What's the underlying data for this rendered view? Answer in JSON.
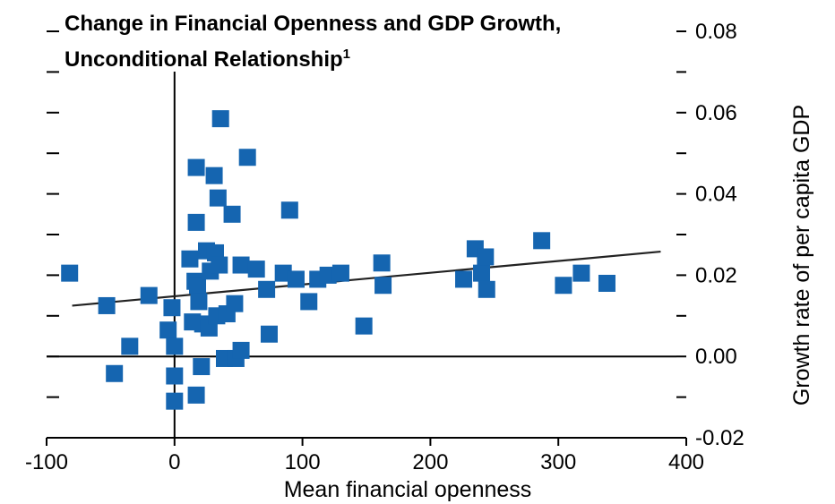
{
  "chart_data": {
    "type": "scatter",
    "title": "Change in Financial Openness and GDP Growth,",
    "title_line2": "Unconditional Relationship",
    "title_footnote": "1",
    "xlabel": "Mean financial openness",
    "ylabel": "Growth rate of per capita GDP",
    "xlim": [
      -100,
      400
    ],
    "ylim": [
      -0.02,
      0.08
    ],
    "x_ticks": [
      -100,
      0,
      100,
      200,
      300,
      400
    ],
    "x_tick_labels": [
      "-100",
      "0",
      "100",
      "200",
      "300",
      "400"
    ],
    "y_ticks": [
      -0.02,
      0.0,
      0.02,
      0.04,
      0.06,
      0.08
    ],
    "y_tick_labels": [
      "-0.02",
      "0.00",
      "0.02",
      "0.04",
      "0.06",
      "0.08"
    ],
    "y_axis_side": "right",
    "grid": false,
    "marker": "square",
    "marker_color": "#1565b0",
    "trend_line": {
      "x": [
        -80,
        380
      ],
      "y": [
        0.0125,
        0.0258
      ],
      "color": "#222222"
    },
    "points": [
      {
        "x": -82,
        "y": 0.0205
      },
      {
        "x": -53,
        "y": 0.0125
      },
      {
        "x": -47,
        "y": -0.0042
      },
      {
        "x": -35,
        "y": 0.0025
      },
      {
        "x": -20,
        "y": 0.015
      },
      {
        "x": -5,
        "y": 0.0065
      },
      {
        "x": -2,
        "y": 0.012
      },
      {
        "x": 0,
        "y": 0.0025
      },
      {
        "x": 0,
        "y": -0.0048
      },
      {
        "x": 0,
        "y": -0.011
      },
      {
        "x": 12,
        "y": 0.024
      },
      {
        "x": 14,
        "y": 0.0085
      },
      {
        "x": 16,
        "y": 0.0185
      },
      {
        "x": 17,
        "y": -0.0095
      },
      {
        "x": 17,
        "y": 0.033
      },
      {
        "x": 17,
        "y": 0.0465
      },
      {
        "x": 18,
        "y": 0.0175
      },
      {
        "x": 19,
        "y": 0.0135
      },
      {
        "x": 22,
        "y": 0.008
      },
      {
        "x": 21,
        "y": -0.0025
      },
      {
        "x": 25,
        "y": 0.026
      },
      {
        "x": 27,
        "y": 0.007
      },
      {
        "x": 28,
        "y": 0.021
      },
      {
        "x": 31,
        "y": 0.0445
      },
      {
        "x": 32,
        "y": 0.0255
      },
      {
        "x": 33,
        "y": 0.01
      },
      {
        "x": 34,
        "y": 0.039
      },
      {
        "x": 35,
        "y": 0.0225
      },
      {
        "x": 36,
        "y": 0.0585
      },
      {
        "x": 39,
        "y": -0.0005
      },
      {
        "x": 41,
        "y": 0.0105
      },
      {
        "x": 45,
        "y": 0.035
      },
      {
        "x": 47,
        "y": 0.013
      },
      {
        "x": 48,
        "y": -0.0005
      },
      {
        "x": 52,
        "y": 0.0225
      },
      {
        "x": 52,
        "y": 0.0015
      },
      {
        "x": 57,
        "y": 0.049
      },
      {
        "x": 64,
        "y": 0.0215
      },
      {
        "x": 72,
        "y": 0.0165
      },
      {
        "x": 74,
        "y": 0.0055
      },
      {
        "x": 85,
        "y": 0.0205
      },
      {
        "x": 90,
        "y": 0.036
      },
      {
        "x": 95,
        "y": 0.019
      },
      {
        "x": 105,
        "y": 0.0135
      },
      {
        "x": 112,
        "y": 0.019
      },
      {
        "x": 120,
        "y": 0.02
      },
      {
        "x": 130,
        "y": 0.0205
      },
      {
        "x": 148,
        "y": 0.0075
      },
      {
        "x": 162,
        "y": 0.023
      },
      {
        "x": 163,
        "y": 0.0175
      },
      {
        "x": 226,
        "y": 0.019
      },
      {
        "x": 235,
        "y": 0.0265
      },
      {
        "x": 240,
        "y": 0.0205
      },
      {
        "x": 243,
        "y": 0.0245
      },
      {
        "x": 244,
        "y": 0.0165
      },
      {
        "x": 287,
        "y": 0.0285
      },
      {
        "x": 304,
        "y": 0.0175
      },
      {
        "x": 318,
        "y": 0.0205
      },
      {
        "x": 338,
        "y": 0.018
      }
    ]
  }
}
